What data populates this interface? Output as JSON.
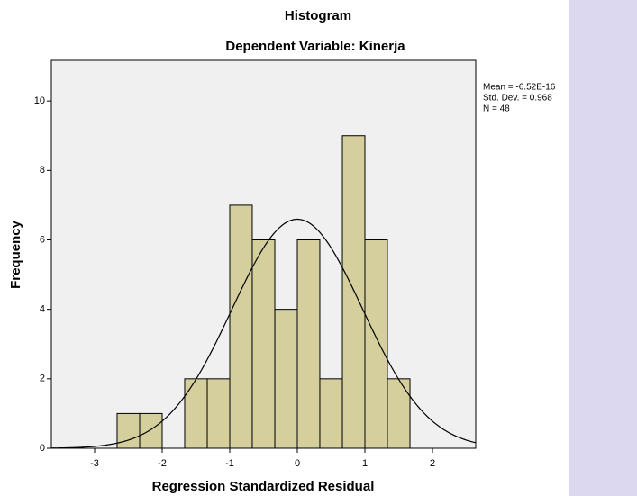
{
  "chart_data": {
    "type": "histogram",
    "title": "Histogram",
    "subtitle": "Dependent Variable: Kinerja",
    "x_label": "Regression Standardized Residual",
    "y_label": "Frequency",
    "bins": [
      -2.667,
      -2.333,
      -2,
      -1.667,
      -1.333,
      -1,
      -0.667,
      -0.333,
      0,
      0.333,
      0.667,
      1,
      1.333,
      1.667
    ],
    "values": [
      1,
      1,
      0,
      2,
      2,
      7,
      6,
      4,
      6,
      2,
      9,
      6,
      2
    ],
    "color": "#d4cf9c",
    "xlim": [
      -3.64,
      2.64
    ],
    "xticks": [
      -3,
      -2,
      -1,
      0,
      1,
      2
    ],
    "ylim": [
      0,
      11.17
    ],
    "yticks": [
      0,
      2,
      4,
      6,
      8,
      10
    ],
    "grid": false,
    "stats": {
      "mean": {
        "value": -6.52e-16,
        "label": "Mean = -6.52E-16"
      },
      "std": {
        "value": 0.968,
        "label": "Std. Dev. = 0.968"
      },
      "n": {
        "value": 48,
        "label": "N = 48"
      }
    }
  }
}
